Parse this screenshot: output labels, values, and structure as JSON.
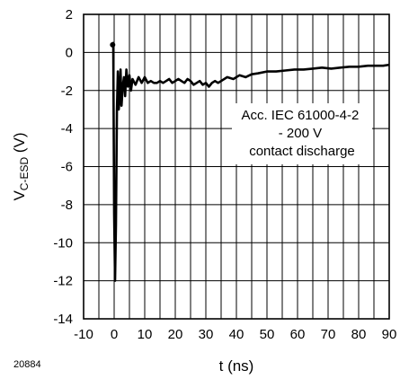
{
  "chart_data": {
    "type": "line",
    "title": "",
    "xlabel": "t (ns)",
    "ylabel": {
      "main": "V",
      "sub": "C-ESD",
      "unit": " (V)"
    },
    "xlim": [
      -10,
      90
    ],
    "ylim": [
      -14,
      2
    ],
    "xticks": [
      -10,
      0,
      10,
      20,
      30,
      40,
      50,
      60,
      70,
      80,
      90
    ],
    "yticks": [
      -14,
      -12,
      -10,
      -8,
      -6,
      -4,
      -2,
      0,
      2
    ],
    "grid": true,
    "minor_grid_x_step": 5,
    "annotation": [
      "Acc. IEC 61000-4-2",
      "- 200 V",
      "contact discharge"
    ],
    "figure_id": "20884",
    "line_color": "#000000",
    "series": [
      {
        "x": [
          -0.5,
          -0.3,
          0,
          0.3,
          0.6,
          0.9,
          1.2,
          1.5,
          1.8,
          2.1,
          2.4,
          2.8,
          3.2,
          3.6,
          4.0,
          4.5,
          5.0,
          5.5,
          6,
          7,
          8,
          9,
          10,
          11,
          12,
          13,
          14,
          15,
          16,
          17,
          18,
          19,
          20,
          21,
          22,
          23,
          24,
          25,
          26,
          27,
          28,
          29,
          30,
          31,
          32,
          33,
          34,
          35,
          37,
          39,
          41,
          43,
          45,
          47,
          50,
          53,
          56,
          59,
          62,
          65,
          68,
          71,
          74,
          77,
          80,
          83,
          86,
          88,
          90
        ],
        "y": [
          0.4,
          0.5,
          -8.5,
          -12.0,
          -9.0,
          -3.0,
          -1.0,
          -3.0,
          -2.4,
          -0.9,
          -2.8,
          -1.8,
          -1.3,
          -2.3,
          -0.9,
          -1.8,
          -1.2,
          -2.0,
          -1.4,
          -1.7,
          -1.3,
          -1.6,
          -1.3,
          -1.6,
          -1.5,
          -1.6,
          -1.6,
          -1.5,
          -1.6,
          -1.5,
          -1.4,
          -1.6,
          -1.5,
          -1.4,
          -1.5,
          -1.6,
          -1.4,
          -1.5,
          -1.7,
          -1.6,
          -1.5,
          -1.7,
          -1.6,
          -1.8,
          -1.6,
          -1.5,
          -1.6,
          -1.5,
          -1.3,
          -1.4,
          -1.2,
          -1.3,
          -1.15,
          -1.1,
          -1.0,
          -1.0,
          -0.95,
          -0.9,
          -0.9,
          -0.85,
          -0.8,
          -0.85,
          -0.8,
          -0.75,
          -0.75,
          -0.7,
          -0.7,
          -0.7,
          -0.65
        ]
      }
    ]
  }
}
